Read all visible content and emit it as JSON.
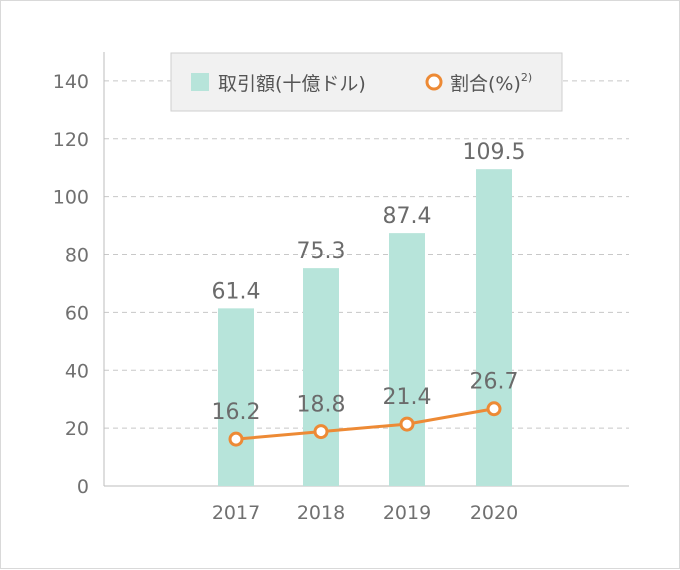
{
  "chart_data": {
    "type": "bar",
    "categories": [
      "2017",
      "2018",
      "2019",
      "2020"
    ],
    "series": [
      {
        "name": "取引額(十億ドル)",
        "type": "bar",
        "axis": "left",
        "values": [
          61.4,
          75.3,
          87.4,
          109.5
        ],
        "color": "#b7e4da"
      },
      {
        "name": "割合(%)",
        "name_sup": "2)",
        "type": "line",
        "axis": "left",
        "values": [
          16.2,
          18.8,
          21.4,
          26.7
        ],
        "color": "#ed8a35"
      }
    ],
    "yticks": [
      "0",
      "20",
      "40",
      "60",
      "80",
      "100",
      "120",
      "140"
    ],
    "ylim": [
      0,
      150
    ],
    "grid": true,
    "legend": "top-center"
  }
}
